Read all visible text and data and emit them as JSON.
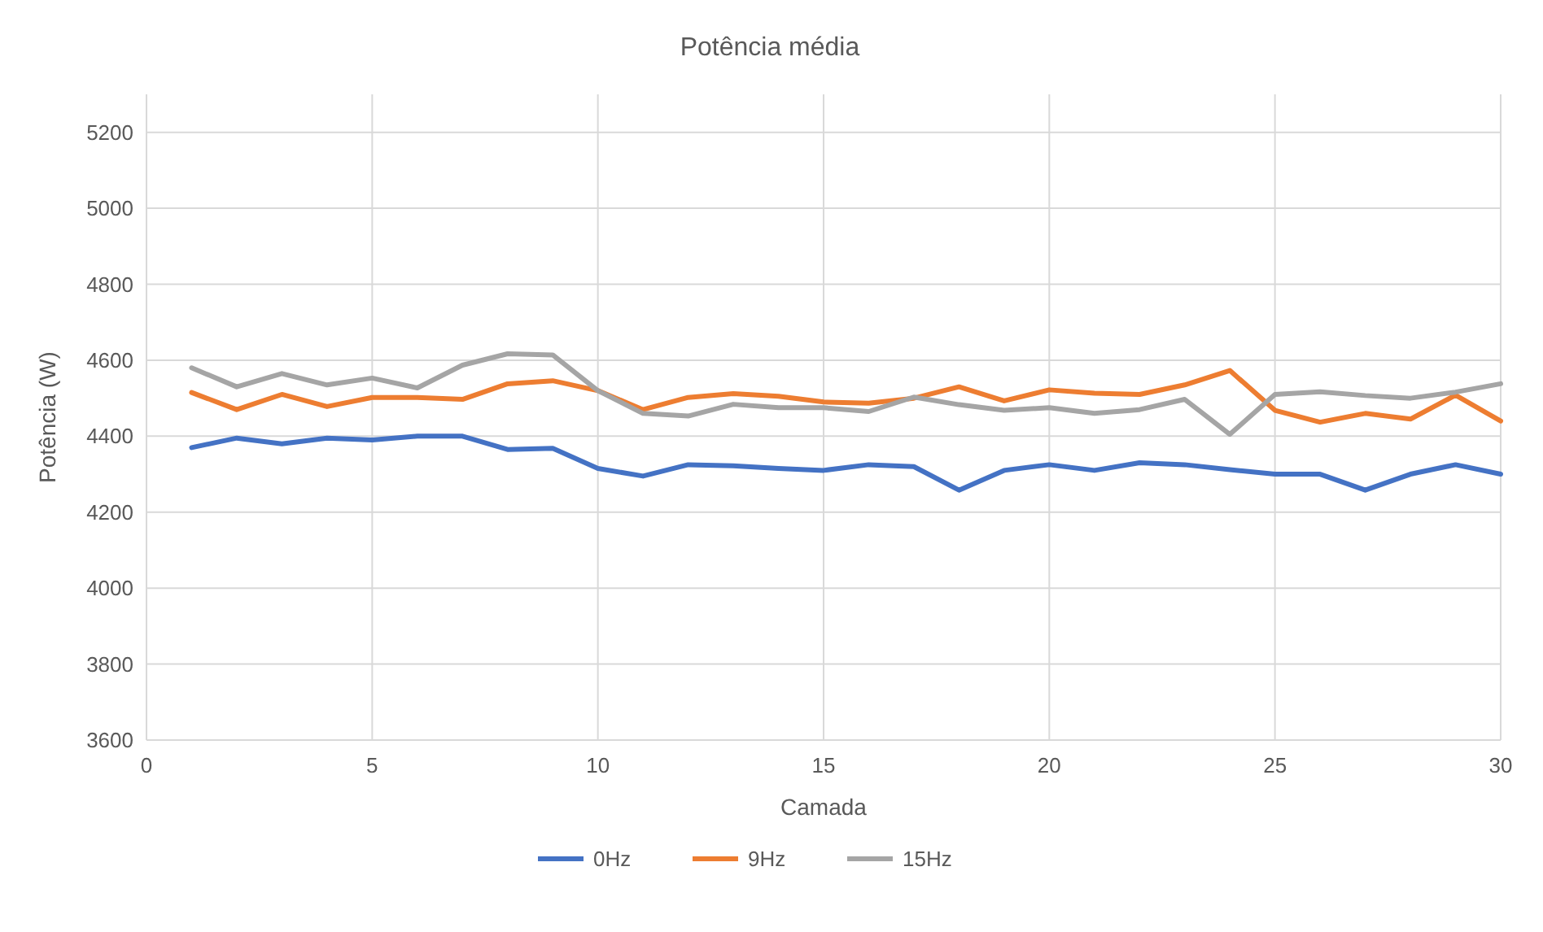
{
  "chart_data": {
    "type": "line",
    "title": "Potência média",
    "xlabel": "Camada",
    "ylabel": "Potência (W)",
    "x": [
      1,
      2,
      3,
      4,
      5,
      6,
      7,
      8,
      9,
      10,
      11,
      12,
      13,
      14,
      15,
      16,
      17,
      18,
      19,
      20,
      21,
      22,
      23,
      24,
      25,
      26,
      27,
      28,
      29,
      30
    ],
    "series": [
      {
        "name": "0Hz",
        "color": "#4472c4",
        "values": [
          4370,
          4395,
          4380,
          4395,
          4390,
          4400,
          4400,
          4365,
          4368,
          4315,
          4295,
          4325,
          4322,
          4315,
          4310,
          4325,
          4320,
          4258,
          4310,
          4325,
          4310,
          4330,
          4325,
          4312,
          4300,
          4300,
          4258,
          4300,
          4325,
          4300
        ]
      },
      {
        "name": "9Hz",
        "color": "#ed7d31",
        "values": [
          4515,
          4470,
          4510,
          4478,
          4502,
          4502,
          4497,
          4538,
          4546,
          4520,
          4470,
          4502,
          4512,
          4505,
          4490,
          4487,
          4500,
          4530,
          4493,
          4522,
          4513,
          4510,
          4535,
          4573,
          4468,
          4437,
          4460,
          4445,
          4508,
          4440
        ]
      },
      {
        "name": "15Hz",
        "color": "#a5a5a5",
        "values": [
          4580,
          4530,
          4565,
          4535,
          4553,
          4527,
          4587,
          4617,
          4614,
          4520,
          4460,
          4453,
          4484,
          4475,
          4475,
          4465,
          4503,
          4483,
          4468,
          4475,
          4460,
          4470,
          4497,
          4405,
          4510,
          4517,
          4507,
          4500,
          4516,
          4538
        ]
      }
    ],
    "xlim": [
      0,
      30
    ],
    "xticks": [
      0,
      5,
      10,
      15,
      20,
      25,
      30
    ],
    "ylim": [
      3600,
      5300
    ],
    "yticks": [
      3600,
      3800,
      4000,
      4200,
      4400,
      4600,
      4800,
      5000,
      5200
    ],
    "grid": true,
    "legend": "bottom",
    "marker": "none",
    "line_style": "solid"
  }
}
